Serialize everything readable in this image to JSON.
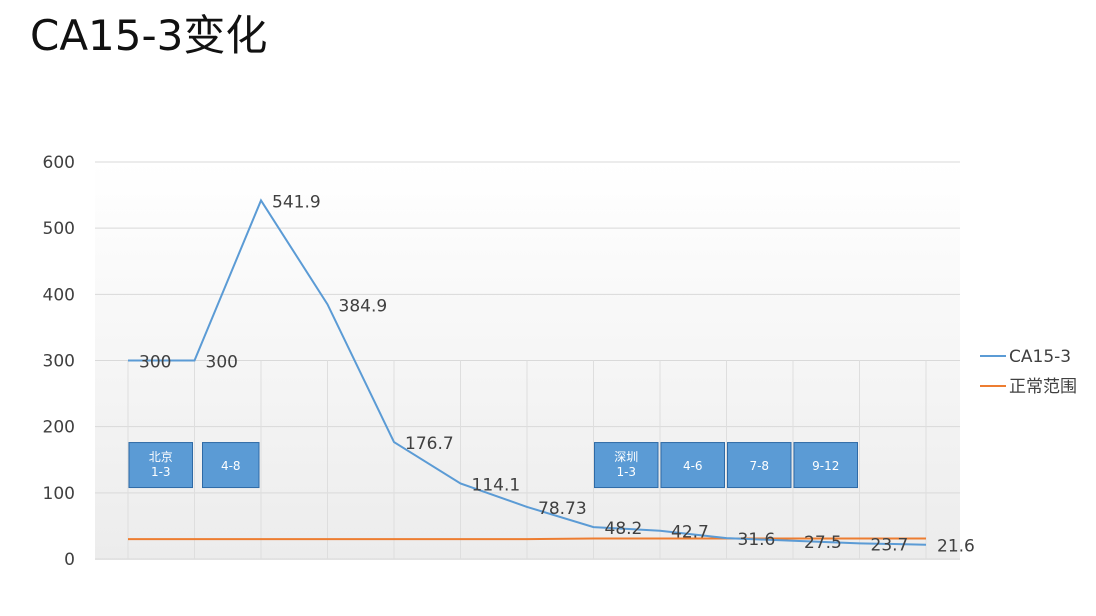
{
  "title": "CA15-3变化",
  "chart_data": {
    "type": "line",
    "title": "CA15-3变化",
    "xlabel": "",
    "ylabel": "",
    "ylim": [
      0,
      600
    ],
    "yticks": [
      0,
      100,
      200,
      300,
      400,
      500,
      600
    ],
    "grid": true,
    "legend_position": "right",
    "series": [
      {
        "name": "CA15-3",
        "color": "#5b9bd5",
        "values": [
          300,
          300,
          541.9,
          384.9,
          176.7,
          114.1,
          78.73,
          48.2,
          42.7,
          31.6,
          27.5,
          23.7,
          21.6
        ],
        "labels": [
          "300",
          "300",
          "541.9",
          "384.9",
          "176.7",
          "114.1",
          "78.73",
          "48.2",
          "42.7",
          "31.6",
          "27.5",
          "23.7",
          "21.6"
        ]
      },
      {
        "name": "正常范围",
        "color": "#ed7d31",
        "values": [
          30,
          30,
          30,
          30,
          30,
          30,
          30,
          31,
          31,
          31,
          31,
          31,
          31
        ]
      }
    ],
    "annotations": [
      {
        "lines": [
          "北京",
          "1-3"
        ],
        "from": 0,
        "to": 1
      },
      {
        "lines": [
          "4-8"
        ],
        "from": 1,
        "to": 2
      },
      {
        "lines": [
          "深圳",
          "1-3"
        ],
        "from": 7,
        "to": 8
      },
      {
        "lines": [
          "4-6"
        ],
        "from": 8,
        "to": 9
      },
      {
        "lines": [
          "7-8"
        ],
        "from": 9,
        "to": 10
      },
      {
        "lines": [
          "9-12"
        ],
        "from": 10,
        "to": 11
      }
    ]
  }
}
